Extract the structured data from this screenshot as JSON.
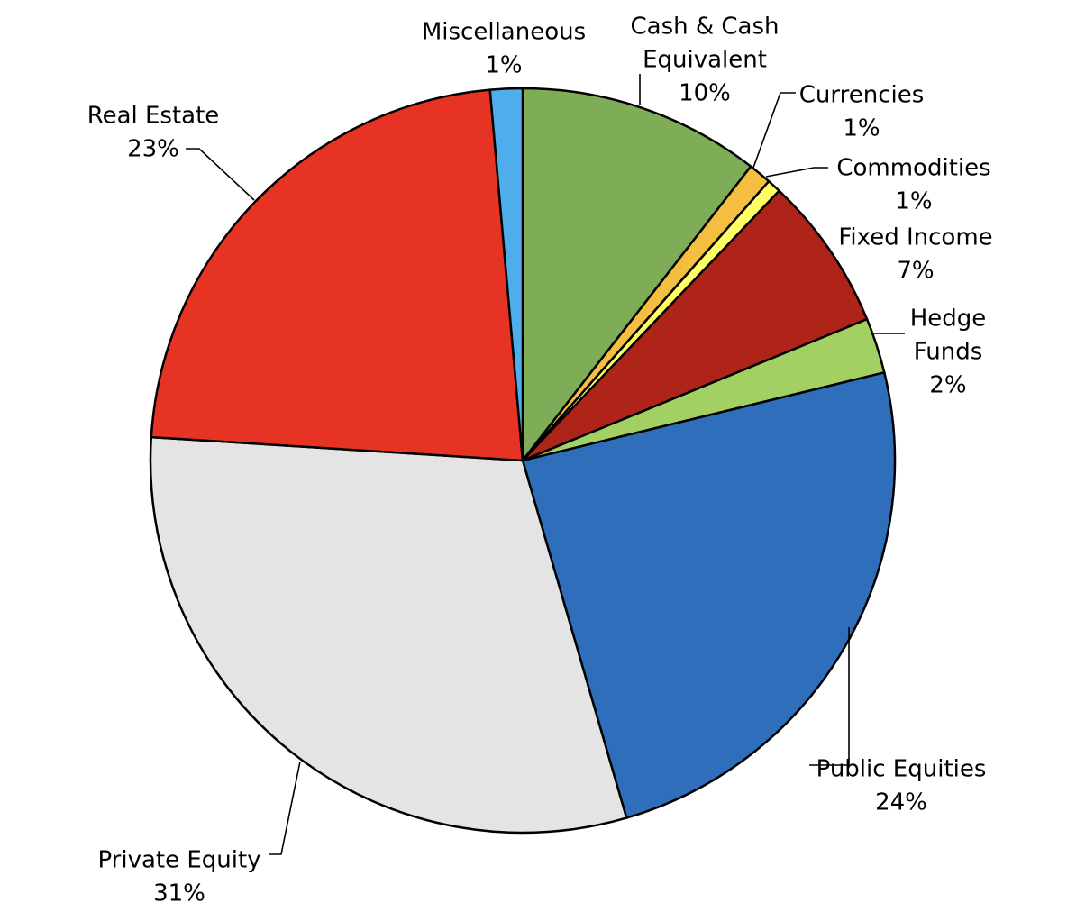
{
  "chart_data": {
    "type": "pie",
    "title": "",
    "slices": [
      {
        "name": "Cash & Cash Equivalent",
        "label_lines": [
          "Cash & Cash",
          "Equivalent"
        ],
        "pct_label": "10%",
        "value": 10.5,
        "color": "#7FAD57"
      },
      {
        "name": "Currencies",
        "label_lines": [
          "Currencies"
        ],
        "pct_label": "1%",
        "value": 1.0,
        "color": "#F4BE41"
      },
      {
        "name": "Commodities",
        "label_lines": [
          "Commodities"
        ],
        "pct_label": "1%",
        "value": 0.6,
        "color": "#FFFF66"
      },
      {
        "name": "Fixed Income",
        "label_lines": [
          "Fixed Income"
        ],
        "pct_label": "7%",
        "value": 6.7,
        "color": "#AE2419"
      },
      {
        "name": "Hedge Funds",
        "label_lines": [
          "Hedge",
          "Funds"
        ],
        "pct_label": "2%",
        "value": 2.4,
        "color": "#A2D062"
      },
      {
        "name": "Public Equities",
        "label_lines": [
          "Public Equities"
        ],
        "pct_label": "24%",
        "value": 24.3,
        "color": "#2F6EBA"
      },
      {
        "name": "Private Equity",
        "label_lines": [
          "Private Equity"
        ],
        "pct_label": "31%",
        "value": 30.5,
        "color": "#E4E4E4"
      },
      {
        "name": "Real Estate",
        "label_lines": [
          "Real Estate"
        ],
        "pct_label": "23%",
        "value": 22.6,
        "color": "#E73323"
      },
      {
        "name": "Miscellaneous",
        "label_lines": [
          "Miscellaneous"
        ],
        "pct_label": "1%",
        "value": 1.4,
        "color": "#4EADEA"
      }
    ]
  }
}
